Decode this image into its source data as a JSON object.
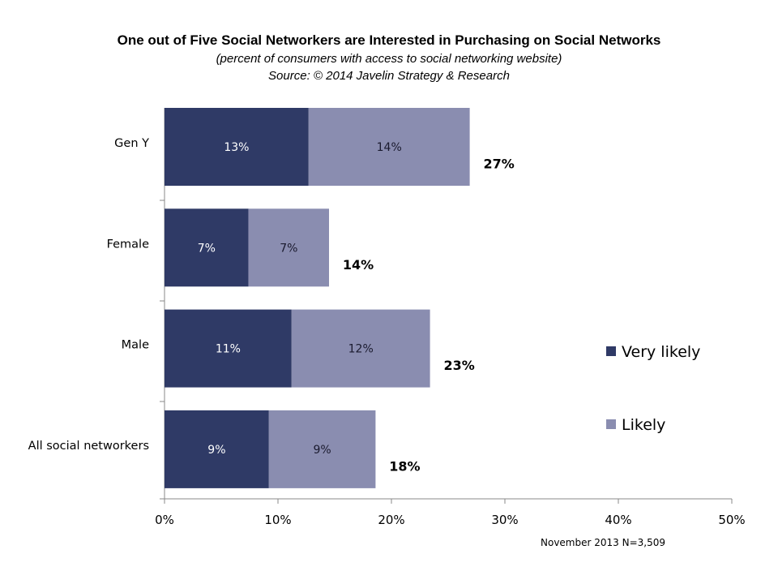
{
  "chart_data": {
    "type": "bar",
    "orientation": "horizontal",
    "stacked": true,
    "title": "One out of Five Social Networkers are Interested in Purchasing on Social Networks",
    "subtitle": "(percent of consumers with access to social networking website)",
    "source": "Source: © 2014 Javelin Strategy & Research",
    "categories": [
      "Gen Y",
      "Female",
      "Male",
      "All social networkers"
    ],
    "series": [
      {
        "name": "Very likely",
        "color": "#2F3A66",
        "values": [
          12.7,
          7.4,
          11.2,
          9.2
        ],
        "labels": [
          "13%",
          "7%",
          "11%",
          "9%"
        ]
      },
      {
        "name": "Likely",
        "color": "#8A8DB0",
        "values": [
          14.2,
          7.1,
          12.2,
          9.4
        ],
        "labels": [
          "14%",
          "7%",
          "12%",
          "9%"
        ]
      }
    ],
    "totals": [
      "27%",
      "14%",
      "23%",
      "18%"
    ],
    "xlim": [
      0,
      50
    ],
    "xticks": [
      "0%",
      "10%",
      "20%",
      "30%",
      "40%",
      "50%"
    ],
    "legend_position": "right",
    "footnote": "November 2013  N=3,509"
  }
}
